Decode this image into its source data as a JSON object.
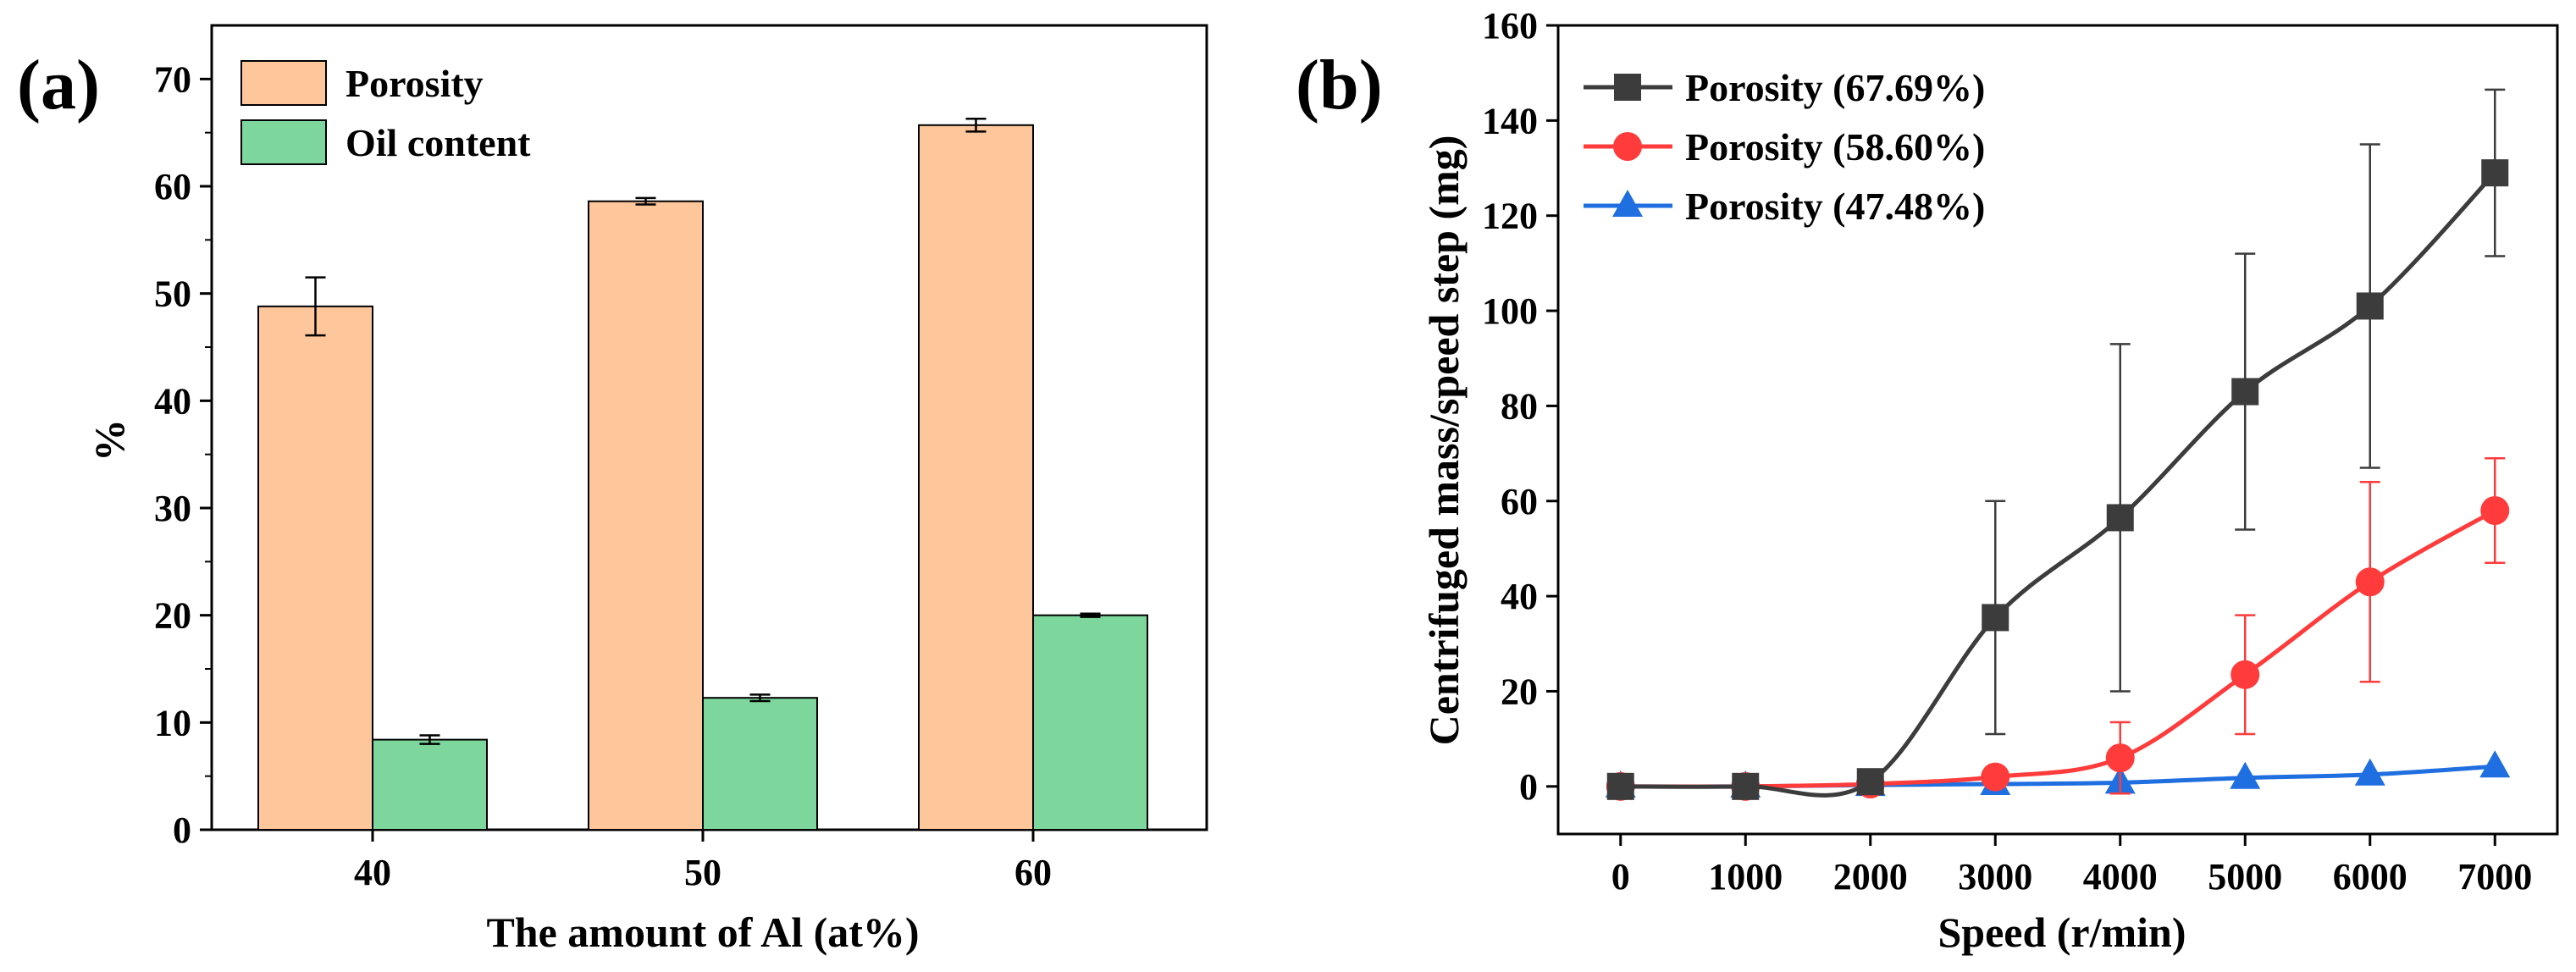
{
  "chart_data": [
    {
      "panel_label": "(a)",
      "type": "bar",
      "categories": [
        "40",
        "50",
        "60"
      ],
      "series": [
        {
          "name": "Porosity",
          "values": [
            48.8,
            58.6,
            65.7
          ],
          "errors": [
            2.7,
            0.3,
            0.6
          ],
          "color": "#FDC69B"
        },
        {
          "name": "Oil content",
          "values": [
            8.4,
            12.3,
            20.0
          ],
          "errors": [
            0.4,
            0.3,
            0.15
          ],
          "color": "#7DD69C"
        }
      ],
      "title": "",
      "xlabel": "The amount of Al (at%)",
      "ylabel": "%",
      "ylim": [
        0,
        75
      ],
      "yticks": [
        0,
        10,
        20,
        30,
        40,
        50,
        60,
        70
      ],
      "legend": "top-left"
    },
    {
      "panel_label": "(b)",
      "type": "line",
      "x": [
        0,
        1000,
        2000,
        3000,
        4000,
        5000,
        6000,
        7000
      ],
      "series": [
        {
          "name": "Porosity (67.69%)",
          "marker": "square",
          "color": "#3C3C3C",
          "values": [
            0,
            0,
            1,
            35.5,
            56.5,
            83,
            101,
            129
          ],
          "errors": [
            0,
            0,
            0,
            24.5,
            36.5,
            29,
            34,
            17.5
          ]
        },
        {
          "name": "Porosity (58.60%)",
          "marker": "circle",
          "color": "#FF3B3B",
          "values": [
            0,
            0,
            0.5,
            2,
            6,
            23.5,
            43,
            58
          ],
          "errors": [
            0,
            0,
            0,
            1,
            7.5,
            12.5,
            21,
            11
          ]
        },
        {
          "name": "Porosity (47.48%)",
          "marker": "triangle",
          "color": "#1F6FE0",
          "values": [
            0,
            0,
            0.3,
            0.5,
            0.8,
            1.8,
            2.5,
            4.2
          ],
          "errors": [
            0,
            0,
            0,
            0,
            0,
            0,
            0,
            0
          ]
        }
      ],
      "title": "",
      "xlabel": "Speed (r/min)",
      "ylabel": "Centrifuged mass/speed step (mg)",
      "xlim": [
        -500,
        7500
      ],
      "ylim": [
        -10,
        160
      ],
      "xticks": [
        0,
        1000,
        2000,
        3000,
        4000,
        5000,
        6000,
        7000
      ],
      "yticks": [
        0,
        20,
        40,
        60,
        80,
        100,
        120,
        140,
        160
      ],
      "legend": "top-left"
    }
  ]
}
